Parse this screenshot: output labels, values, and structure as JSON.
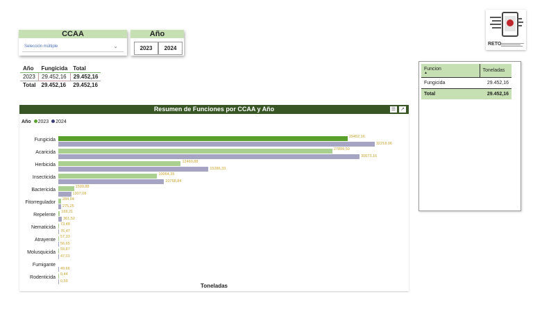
{
  "slicers": {
    "ccaa": {
      "title": "CCAA",
      "value": "Selección múltiple"
    },
    "anio": {
      "title": "Año",
      "options": [
        "2023",
        "2024"
      ]
    }
  },
  "mini_table": {
    "headers": [
      "Año",
      "Fungicida",
      "Total"
    ],
    "rows": [
      {
        "anio": "2023",
        "fungicida": "29.452,16",
        "total": "29.452,16"
      }
    ],
    "total": {
      "label": "Total",
      "fungicida": "29.452,16",
      "total": "29.452,16"
    }
  },
  "logo": {
    "text": "RETO"
  },
  "right_table": {
    "headers": [
      "Funcion",
      "Toneladas"
    ],
    "rows": [
      {
        "funcion": "Fungicida",
        "toneladas": "29.452,16"
      }
    ],
    "total": {
      "label": "Total",
      "toneladas": "29.452,16"
    }
  },
  "chart": {
    "legend_title": "Año",
    "xlabel": "Toneladas",
    "colors": {
      "2023": "#a9d08e",
      "2024": "#a5a5c3",
      "highlight2023": "#5aa02c",
      "label": "#c9a227"
    },
    "icons": [
      "filter-icon",
      "focus-mode-icon"
    ]
  },
  "chart_data": {
    "type": "bar",
    "orientation": "horizontal",
    "title": "Resumen de Funciones por CCAA y Año",
    "xlabel": "Toneladas",
    "categories": [
      "Fungicida",
      "Acaricida",
      "Herbicida",
      "Insecticida",
      "Bactericida",
      "Fitorregulador",
      "Repelente",
      "Nematicida",
      "Atrayente",
      "Molusquicida",
      "Fumigante",
      "Rodenticida"
    ],
    "series": [
      {
        "name": "2023",
        "values": [
          29452.16,
          27899.5,
          12469.88,
          10064.35,
          1599.88,
          284.04,
          169.21,
          73.48,
          57.33,
          59.87,
          null,
          0.44
        ],
        "labels": [
          "29452,16",
          "27899,50",
          "12469,88",
          "10064,35",
          "1599,88",
          "284,04",
          "169,21",
          "73,48",
          "57,33",
          "59,87",
          "",
          "0,44"
        ]
      },
      {
        "name": "2024",
        "values": [
          32218.06,
          30673.16,
          15286.33,
          10768.84,
          1307.08,
          275.25,
          361.52,
          76.47,
          56.65,
          47.01,
          49.66,
          0.59
        ],
        "labels": [
          "32218,06",
          "30673,16",
          "15286,33",
          "10768,84",
          "1307,08",
          "275,25",
          "361,52",
          "76,47",
          "56,65",
          "47,01",
          "49,66",
          "0,59"
        ]
      }
    ],
    "legend": "top-left",
    "grid": false,
    "xaxis_ticks": false
  }
}
